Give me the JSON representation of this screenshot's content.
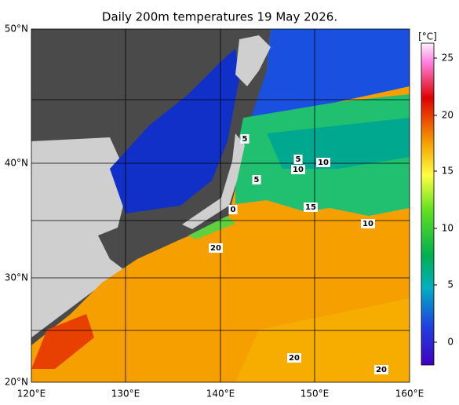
{
  "title": "Daily 200m temperatures 19 May 2026.",
  "latitude_labels": [
    "50°N",
    "40°N",
    "30°N",
    "20°N"
  ],
  "longitude_labels": [
    "120°E",
    "130°E",
    "140°E",
    "150°E",
    "160°E"
  ],
  "colorbar": {
    "unit": "[°C]",
    "ticks": [
      "25",
      "20",
      "15",
      "10",
      "5",
      "0"
    ]
  },
  "contour_labels": [
    "5",
    "5",
    "10",
    "10",
    "5",
    "0",
    "15",
    "10",
    "20",
    "20",
    "20"
  ]
}
